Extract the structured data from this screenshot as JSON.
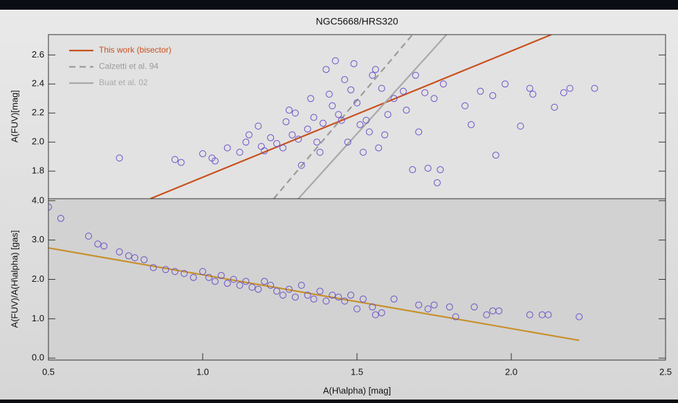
{
  "chart_data": [
    {
      "type": "scatter",
      "title": "NGC5668/HRS320",
      "y_label": "A(FUV)[mag]",
      "xlim": [
        0.5,
        2.5
      ],
      "ylim": [
        1.61,
        2.74
      ],
      "yticks": [
        1.8,
        {
          "value": 2.0,
          "label": "2.0"
        },
        2.2,
        2.4,
        2.6
      ],
      "legend": "upper left",
      "points": {
        "color": "#6a4fc8",
        "x": [
          0.73,
          0.91,
          0.93,
          1.0,
          1.03,
          1.04,
          1.08,
          1.12,
          1.14,
          1.15,
          1.18,
          1.19,
          1.2,
          1.22,
          1.24,
          1.26,
          1.27,
          1.28,
          1.29,
          1.3,
          1.31,
          1.32,
          1.34,
          1.35,
          1.36,
          1.37,
          1.38,
          1.39,
          1.4,
          1.41,
          1.42,
          1.43,
          1.44,
          1.45,
          1.46,
          1.47,
          1.48,
          1.49,
          1.5,
          1.51,
          1.52,
          1.53,
          1.54,
          1.55,
          1.56,
          1.57,
          1.58,
          1.59,
          1.6,
          1.62,
          1.65,
          1.66,
          1.68,
          1.69,
          1.7,
          1.72,
          1.73,
          1.75,
          1.76,
          1.77,
          1.78,
          1.85,
          1.87,
          1.9,
          1.94,
          1.95,
          1.98,
          2.03,
          2.06,
          2.07,
          2.14,
          2.17,
          2.19,
          2.27
        ],
        "values": [
          1.89,
          1.88,
          1.86,
          1.92,
          1.89,
          1.87,
          1.96,
          1.93,
          2.0,
          2.05,
          2.11,
          1.97,
          1.94,
          2.03,
          1.99,
          1.96,
          2.14,
          2.22,
          2.05,
          2.2,
          2.02,
          1.84,
          2.09,
          2.3,
          2.17,
          2.0,
          1.93,
          2.13,
          2.5,
          2.33,
          2.25,
          2.56,
          2.19,
          2.15,
          2.43,
          2.0,
          2.36,
          2.54,
          2.27,
          2.12,
          1.93,
          2.15,
          2.07,
          2.46,
          2.5,
          1.96,
          2.37,
          2.05,
          2.19,
          2.3,
          2.35,
          2.22,
          1.81,
          2.46,
          2.07,
          2.34,
          1.82,
          2.3,
          1.72,
          1.81,
          2.4,
          2.25,
          2.12,
          2.35,
          2.32,
          1.91,
          2.4,
          2.11,
          2.37,
          2.33,
          2.24,
          2.34,
          2.37,
          2.37
        ]
      },
      "series": [
        {
          "name": "This work (bisector)",
          "color": "#c8501e",
          "style": "solid",
          "x": [
            0.83,
            2.13
          ],
          "values": [
            1.61,
            2.74
          ]
        },
        {
          "name": "Calzetti et al. 94",
          "color": "#9a9a9a",
          "style": "dashed",
          "x": [
            1.23,
            1.68
          ],
          "values": [
            1.61,
            2.74
          ]
        },
        {
          "name": "Buat et al. 02",
          "color": "#a8a8a8",
          "style": "solid",
          "x": [
            1.31,
            1.79
          ],
          "values": [
            1.61,
            2.74
          ]
        }
      ]
    },
    {
      "type": "scatter",
      "y_label": "A(FUV)/A(H\\alpha) [gas]",
      "x_label": "A(H\\alpha) [mag]",
      "xlim": [
        0.5,
        2.5
      ],
      "ylim": [
        -0.05,
        4.05
      ],
      "xticks": [
        0.5,
        {
          "value": 1.0,
          "label": "1.0"
        },
        1.5,
        {
          "value": 2.0,
          "label": "2.0"
        },
        2.5
      ],
      "yticks": [
        {
          "value": 0.0,
          "label": "0.0"
        },
        {
          "value": 1.0,
          "label": "1.0"
        },
        {
          "value": 2.0,
          "label": "2.0"
        },
        {
          "value": 3.0,
          "label": "3.0"
        },
        {
          "value": 4.0,
          "label": "4.0"
        }
      ],
      "points": {
        "color": "#6a4fc8",
        "x": [
          0.5,
          0.54,
          0.63,
          0.66,
          0.68,
          0.73,
          0.76,
          0.78,
          0.81,
          0.84,
          0.88,
          0.91,
          0.94,
          0.97,
          1.0,
          1.02,
          1.04,
          1.06,
          1.08,
          1.1,
          1.12,
          1.14,
          1.16,
          1.18,
          1.2,
          1.22,
          1.24,
          1.26,
          1.28,
          1.3,
          1.32,
          1.34,
          1.36,
          1.38,
          1.4,
          1.42,
          1.44,
          1.46,
          1.48,
          1.5,
          1.52,
          1.55,
          1.56,
          1.58,
          1.62,
          1.7,
          1.73,
          1.75,
          1.8,
          1.82,
          1.88,
          1.92,
          1.94,
          1.96,
          2.06,
          2.1,
          2.12,
          2.22
        ],
        "values": [
          3.84,
          3.55,
          3.1,
          2.9,
          2.85,
          2.7,
          2.6,
          2.55,
          2.5,
          2.3,
          2.25,
          2.2,
          2.15,
          2.05,
          2.2,
          2.05,
          1.95,
          2.1,
          1.9,
          2.0,
          1.85,
          1.95,
          1.8,
          1.75,
          1.95,
          1.85,
          1.7,
          1.6,
          1.75,
          1.55,
          1.85,
          1.6,
          1.5,
          1.7,
          1.45,
          1.6,
          1.55,
          1.45,
          1.6,
          1.25,
          1.5,
          1.3,
          1.1,
          1.15,
          1.5,
          1.35,
          1.25,
          1.35,
          1.3,
          1.05,
          1.3,
          1.1,
          1.2,
          1.2,
          1.1,
          1.1,
          1.1,
          1.05
        ]
      },
      "series": [
        {
          "color": "#c8902a",
          "style": "solid",
          "x": [
            0.5,
            2.22
          ],
          "values": [
            2.8,
            0.45
          ]
        }
      ]
    }
  ]
}
